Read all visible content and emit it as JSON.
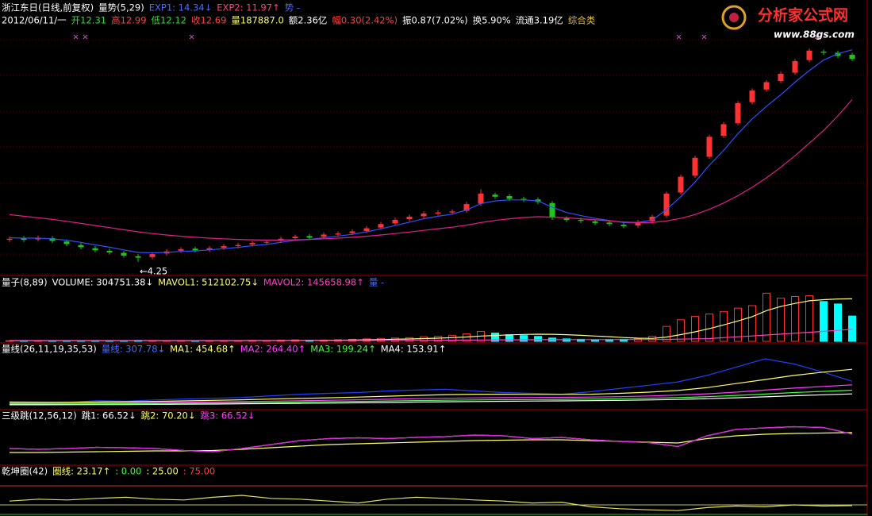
{
  "header": {
    "line2": [
      {
        "text": "2012/06/11/一",
        "color": "#ffffff"
      },
      {
        "text": "开12.31",
        "color": "#33dd33"
      },
      {
        "text": "高12.99",
        "color": "#ff4040"
      },
      {
        "text": "低12.12",
        "color": "#33dd33"
      },
      {
        "text": "收12.69",
        "color": "#ff4040"
      },
      {
        "text": "量187887.0",
        "color": "#ffff66"
      },
      {
        "text": "额2.36亿",
        "color": "#ffffff"
      },
      {
        "text": "幅0.30(2.42%)",
        "color": "#ff4040"
      },
      {
        "text": "振0.87(7.02%)",
        "color": "#ffffff"
      },
      {
        "text": "换5.90%",
        "color": "#ffffff"
      },
      {
        "text": "流通3.19亿",
        "color": "#ffffff"
      },
      {
        "text": "综合类",
        "color": "#e0c040"
      }
    ]
  },
  "watermark": {
    "name": "分析家公式网",
    "url": "www.88gs.com"
  },
  "chart_data": [
    {
      "type": "candlestick",
      "legend": [
        {
          "text": "浙江东日(日线,前复权)",
          "color": "#ffffff"
        },
        {
          "text": "量势(5,29)",
          "color": "#ffffff"
        },
        {
          "text": "EXP1: 14.34↓",
          "color": "#4a6cff"
        },
        {
          "text": "EXP2: 11.97↑",
          "color": "#ff4080"
        },
        {
          "text": "势 -",
          "color": "#4a6cff"
        }
      ],
      "ylim": [
        3.68,
        16.33
      ],
      "up_color": "#ff3232",
      "down_color": "#19c819",
      "open": [
        5.3,
        5.38,
        5.32,
        5.38,
        5.22,
        5.05,
        4.9,
        4.78,
        4.68,
        4.52,
        4.48,
        4.65,
        4.78,
        4.88,
        4.82,
        4.92,
        5.0,
        5.08,
        5.18,
        5.25,
        5.38,
        5.48,
        5.45,
        5.55,
        5.62,
        5.72,
        5.88,
        6.08,
        6.28,
        6.42,
        6.55,
        6.6,
        6.68,
        7.02,
        7.45,
        7.38,
        7.25,
        7.22,
        7.05,
        6.32,
        6.25,
        6.18,
        6.12,
        6.02,
        5.98,
        6.18,
        6.45,
        7.55,
        8.35,
        9.25,
        10.25,
        10.85,
        11.85,
        12.45,
        12.85,
        13.25,
        13.85,
        14.25,
        14.2,
        14.1
      ],
      "high": [
        5.45,
        5.48,
        5.5,
        5.48,
        5.32,
        5.15,
        5.0,
        4.88,
        4.78,
        4.62,
        4.72,
        4.85,
        4.95,
        4.98,
        5.0,
        5.1,
        5.15,
        5.25,
        5.3,
        5.45,
        5.55,
        5.58,
        5.65,
        5.7,
        5.8,
        5.95,
        6.15,
        6.35,
        6.5,
        6.65,
        6.7,
        6.75,
        7.1,
        7.7,
        7.55,
        7.48,
        7.35,
        7.32,
        7.15,
        6.42,
        6.35,
        6.28,
        6.22,
        6.12,
        6.25,
        6.5,
        7.6,
        8.4,
        9.3,
        10.3,
        10.9,
        11.9,
        12.5,
        12.9,
        13.3,
        13.9,
        14.4,
        14.35,
        14.3,
        14.2
      ],
      "low": [
        5.2,
        5.2,
        5.22,
        5.15,
        5.0,
        4.85,
        4.7,
        4.6,
        4.45,
        4.25,
        4.38,
        4.55,
        4.68,
        4.7,
        4.72,
        4.82,
        4.9,
        4.98,
        5.08,
        5.15,
        5.28,
        5.3,
        5.35,
        5.45,
        5.52,
        5.62,
        5.78,
        5.98,
        6.18,
        6.32,
        6.45,
        6.5,
        6.58,
        6.92,
        7.25,
        7.15,
        7.1,
        7.0,
        6.25,
        6.15,
        6.1,
        6.0,
        5.95,
        5.85,
        5.88,
        6.08,
        6.35,
        7.45,
        8.25,
        9.15,
        10.15,
        10.75,
        11.75,
        12.35,
        12.75,
        13.15,
        13.75,
        14.1,
        13.95,
        13.8
      ],
      "close": [
        5.35,
        5.3,
        5.4,
        5.25,
        5.1,
        4.95,
        4.8,
        4.7,
        4.55,
        4.45,
        4.62,
        4.75,
        4.85,
        4.8,
        4.9,
        5.0,
        5.05,
        5.15,
        5.2,
        5.35,
        5.45,
        5.4,
        5.55,
        5.6,
        5.7,
        5.85,
        6.05,
        6.25,
        6.4,
        6.55,
        6.6,
        6.65,
        7.0,
        7.5,
        7.35,
        7.25,
        7.2,
        7.1,
        6.35,
        6.25,
        6.2,
        6.1,
        6.05,
        5.95,
        6.15,
        6.4,
        7.5,
        8.3,
        9.2,
        10.2,
        10.8,
        11.8,
        12.4,
        12.8,
        13.2,
        13.8,
        14.3,
        14.2,
        14.05,
        13.9
      ],
      "low_label": "←4.25",
      "series": [
        {
          "color": "#3050ff",
          "values": [
            5.4,
            5.38,
            5.38,
            5.35,
            5.28,
            5.18,
            5.06,
            4.95,
            4.82,
            4.7,
            4.68,
            4.7,
            4.75,
            4.77,
            4.82,
            4.88,
            4.94,
            5.02,
            5.08,
            5.18,
            5.28,
            5.32,
            5.4,
            5.48,
            5.56,
            5.68,
            5.82,
            5.98,
            6.14,
            6.3,
            6.42,
            6.52,
            6.72,
            7.02,
            7.15,
            7.2,
            7.2,
            7.15,
            6.85,
            6.6,
            6.45,
            6.32,
            6.22,
            6.12,
            6.13,
            6.24,
            6.74,
            7.35,
            8.05,
            8.85,
            9.55,
            10.35,
            11.05,
            11.65,
            12.2,
            12.8,
            13.35,
            13.85,
            14.15,
            14.34
          ]
        },
        {
          "color": "#e0208a",
          "values": [
            6.5,
            6.42,
            6.35,
            6.27,
            6.18,
            6.08,
            5.98,
            5.88,
            5.78,
            5.68,
            5.6,
            5.53,
            5.47,
            5.42,
            5.38,
            5.35,
            5.32,
            5.3,
            5.29,
            5.29,
            5.3,
            5.32,
            5.35,
            5.38,
            5.42,
            5.47,
            5.53,
            5.6,
            5.67,
            5.75,
            5.83,
            5.9,
            6.0,
            6.12,
            6.22,
            6.3,
            6.36,
            6.4,
            6.38,
            6.35,
            6.3,
            6.25,
            6.2,
            6.15,
            6.12,
            6.12,
            6.2,
            6.32,
            6.5,
            6.75,
            7.05,
            7.4,
            7.8,
            8.25,
            8.75,
            9.3,
            9.9,
            10.5,
            11.2,
            11.97
          ]
        }
      ]
    },
    {
      "type": "volume",
      "legend": [
        {
          "text": "量子(8,89)",
          "color": "#ffffff"
        },
        {
          "text": "VOLUME: 304751.38↓",
          "color": "#ffffff"
        },
        {
          "text": "MAVOL1: 512102.75↓",
          "color": "#ffff66"
        },
        {
          "text": "MAVOL2: 145658.98↑",
          "color": "#ff40c0"
        },
        {
          "text": "量 -",
          "color": "#4a6cff"
        }
      ],
      "ylim": [
        0,
        650000
      ],
      "up_color": "#ff3232",
      "down_color": "#00ffff",
      "values": [
        8000,
        6000,
        7000,
        9000,
        8000,
        7000,
        6000,
        8000,
        9000,
        12000,
        10000,
        9000,
        8000,
        7000,
        9000,
        8000,
        10000,
        11000,
        9000,
        15000,
        18000,
        14000,
        16000,
        20000,
        25000,
        30000,
        35000,
        40000,
        45000,
        55000,
        60000,
        70000,
        90000,
        120000,
        100000,
        80000,
        70000,
        60000,
        40000,
        30000,
        25000,
        20000,
        22000,
        25000,
        30000,
        60000,
        180000,
        260000,
        300000,
        330000,
        360000,
        400000,
        430000,
        580000,
        520000,
        540000,
        550000,
        480000,
        450000,
        304751.38
      ],
      "series": [
        {
          "color": "#ffff80",
          "values": [
            8000,
            7500,
            7500,
            7800,
            7800,
            7600,
            7400,
            7500,
            7600,
            8200,
            8400,
            8500,
            8500,
            8400,
            8500,
            8700,
            8800,
            9200,
            9300,
            10000,
            11000,
            11600,
            12500,
            13500,
            15500,
            17900,
            21600,
            25900,
            29100,
            33000,
            38000,
            45000,
            53000,
            64000,
            71000,
            78000,
            83000,
            86000,
            85000,
            80000,
            73000,
            64000,
            56000,
            46000,
            38000,
            35000,
            52000,
            81000,
            115000,
            154000,
            198000,
            246000,
            297000,
            370000,
            420000,
            457000,
            488000,
            502000,
            510000,
            512102.75
          ]
        },
        {
          "color": "#ff40c0",
          "values": [
            10000,
            9900,
            9800,
            9800,
            9700,
            9600,
            9500,
            9500,
            9400,
            9400,
            9400,
            9300,
            9300,
            9300,
            9300,
            9300,
            9300,
            9400,
            9400,
            9500,
            9700,
            9800,
            10000,
            10200,
            10500,
            10800,
            11200,
            11700,
            12200,
            12800,
            13500,
            14300,
            15300,
            16600,
            17700,
            18600,
            19400,
            20100,
            20500,
            20800,
            21000,
            21200,
            21400,
            21600,
            21800,
            22300,
            24200,
            26900,
            30200,
            33800,
            45000,
            55000,
            65000,
            76000,
            87000,
            98000,
            109000,
            120000,
            132000,
            145658.98
          ]
        }
      ]
    },
    {
      "type": "line",
      "legend": [
        {
          "text": "量线(26,11,19,35,53)",
          "color": "#ffffff"
        },
        {
          "text": "量线: 307.78↓",
          "color": "#4a6cff"
        },
        {
          "text": "MA1: 454.68↑",
          "color": "#ffff66"
        },
        {
          "text": "MA2: 264.40↑",
          "color": "#ff40ff"
        },
        {
          "text": "MA3: 199.24↑",
          "color": "#40ff40"
        },
        {
          "text": "MA4: 153.91↑",
          "color": "#ffffff"
        }
      ],
      "ylim": [
        0,
        700
      ],
      "series": [
        {
          "color": "#2040ff",
          "values": [
            60,
            55,
            50,
            70,
            65,
            80,
            90,
            100,
            110,
            130,
            150,
            160,
            170,
            190,
            200,
            210,
            190,
            170,
            160,
            150,
            180,
            220,
            260,
            300,
            380,
            480,
            583,
            520,
            420,
            307.78
          ]
        },
        {
          "color": "#ffff66",
          "values": [
            50,
            50,
            52,
            55,
            58,
            62,
            68,
            75,
            82,
            90,
            98,
            106,
            115,
            125,
            135,
            145,
            150,
            150,
            148,
            148,
            150,
            160,
            175,
            195,
            230,
            280,
            330,
            380,
            420,
            454.68
          ]
        },
        {
          "color": "#ff40ff",
          "values": [
            40,
            40,
            41,
            43,
            45,
            48,
            52,
            56,
            60,
            65,
            70,
            76,
            82,
            88,
            95,
            100,
            105,
            108,
            110,
            112,
            115,
            120,
            128,
            140,
            155,
            175,
            200,
            225,
            245,
            264.4
          ]
        },
        {
          "color": "#40ff40",
          "values": [
            30,
            30,
            31,
            32,
            34,
            36,
            39,
            42,
            45,
            49,
            53,
            57,
            62,
            67,
            72,
            76,
            80,
            83,
            85,
            87,
            90,
            94,
            100,
            108,
            120,
            135,
            152,
            170,
            185,
            199.24
          ]
        },
        {
          "color": "#ffffff",
          "values": [
            20,
            20,
            21,
            22,
            23,
            25,
            27,
            29,
            32,
            35,
            38,
            41,
            45,
            49,
            53,
            57,
            60,
            63,
            66,
            68,
            71,
            75,
            80,
            86,
            95,
            106,
            118,
            131,
            143,
            153.91
          ]
        }
      ]
    },
    {
      "type": "line",
      "legend": [
        {
          "text": "三级跳(12,56,12)",
          "color": "#ffffff"
        },
        {
          "text": "跳1: 66.52↓",
          "color": "#ffffff"
        },
        {
          "text": "跳2: 70.20↓",
          "color": "#ffff66"
        },
        {
          "text": "跳3: 66.52↓",
          "color": "#ff40ff"
        }
      ],
      "ylim": [
        0,
        100
      ],
      "series": [
        {
          "color": "#ffffff",
          "values": [
            30,
            28,
            30,
            33,
            32,
            30,
            25,
            22,
            30,
            40,
            50,
            55,
            57,
            55,
            58,
            60,
            64,
            62,
            55,
            58,
            52,
            48,
            45,
            35,
            62,
            78,
            82,
            85,
            83,
            66.52
          ]
        },
        {
          "color": "#ffff66",
          "values": [
            20,
            20,
            21,
            22,
            23,
            24,
            24,
            25,
            28,
            32,
            36,
            40,
            42,
            44,
            46,
            48,
            50,
            51,
            52,
            52,
            50,
            48,
            46,
            44,
            55,
            62,
            66,
            68,
            69,
            70.2
          ]
        },
        {
          "color": "#e020e0",
          "values": [
            30,
            28,
            30,
            33,
            32,
            30,
            25,
            22,
            30,
            40,
            50,
            55,
            57,
            55,
            58,
            60,
            64,
            62,
            55,
            58,
            52,
            48,
            45,
            35,
            62,
            78,
            82,
            85,
            83,
            66.52
          ]
        }
      ]
    },
    {
      "type": "line",
      "legend": [
        {
          "text": "乾坤圈(42)",
          "color": "#ffffff"
        },
        {
          "text": "圈线: 23.17↑",
          "color": "#ffff66"
        }
      ],
      "ylim": [
        0,
        100
      ],
      "levels": [
        {
          "value": 0,
          "label": ": 0.00",
          "color": "#40ff40"
        },
        {
          "value": 25,
          "label": ": 25.00",
          "color": "#ffff66"
        },
        {
          "value": 75,
          "label": ": 75.00",
          "color": "#ff4040"
        }
      ],
      "series": [
        {
          "color": "#e0e060",
          "values": [
            35,
            40,
            38,
            42,
            45,
            40,
            38,
            45,
            50,
            42,
            40,
            35,
            30,
            40,
            45,
            42,
            38,
            35,
            30,
            32,
            20,
            15,
            12,
            10,
            18,
            22,
            20,
            25,
            22,
            23.17
          ]
        }
      ]
    }
  ]
}
